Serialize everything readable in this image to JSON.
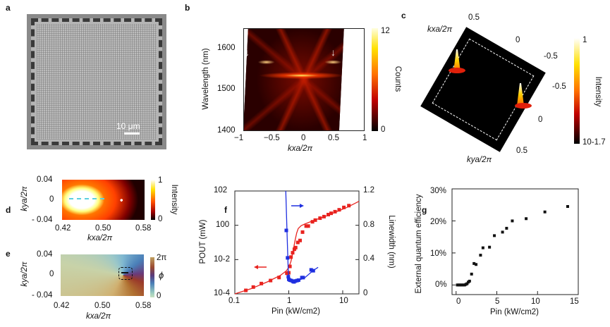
{
  "panels": {
    "a": {
      "label": "a",
      "scale_bar": "10 μm"
    },
    "b": {
      "label": "b",
      "ylabel": "Wavelength (nm)",
      "xlabel": "kxa/2π",
      "yticks": [
        "1600",
        "1500",
        "1400"
      ],
      "xticks": [
        "−1",
        "−0.5",
        "0",
        "0.5",
        "1"
      ],
      "colorbar_label": "Counts",
      "colorbar_ticks": [
        "12",
        "0"
      ]
    },
    "c": {
      "label": "c",
      "kx_label": "kxa/2π",
      "ky_label": "kya/2π",
      "kx_ticks": [
        "0.5",
        "0",
        "-0.5"
      ],
      "ky_ticks": [
        "-0.5",
        "0",
        "0.5"
      ],
      "colorbar_label": "Intensity",
      "colorbar_ticks": [
        "1",
        "10-1.7"
      ]
    },
    "d": {
      "label": "d",
      "ylabel": "kya/2π",
      "xlabel": "kxa/2π",
      "yticks": [
        "0.04",
        "0",
        "- 0.04"
      ],
      "xticks": [
        "0.42",
        "0.50",
        "0.58"
      ],
      "colorbar_label": "Intensity",
      "colorbar_ticks": [
        "1",
        "0"
      ]
    },
    "e": {
      "label": "e",
      "ylabel": "kya/2π",
      "xlabel": "kxa/2π",
      "yticks": [
        "0.04",
        "0",
        "- 0.04"
      ],
      "xticks": [
        "0.42",
        "0.50",
        "0.58"
      ],
      "colorbar_label": "ϕ",
      "colorbar_ticks": [
        "2π",
        "0"
      ]
    },
    "f": {
      "label": "f"
    },
    "g": {
      "label": "g"
    }
  },
  "chart_data": [
    {
      "panel": "f",
      "type": "scatter",
      "xlabel": "Pin (kW/cm2)",
      "ylabel": "POUT (mW)",
      "y2label": "Linewidth (nm)",
      "xscale": "log",
      "xlim": [
        0.1,
        20
      ],
      "yscale": "log",
      "ylim": [
        0.0001,
        100
      ],
      "y2lim": [
        0,
        1.2
      ],
      "xticks": [
        "0.1",
        "1",
        "10"
      ],
      "yticks": [
        "10-4",
        "10-2",
        "100",
        "102"
      ],
      "y2ticks": [
        "0",
        "0.4",
        "0.8",
        "1.2"
      ],
      "colors": {
        "output": "#e8231f",
        "linewidth": "#1f2fe0"
      },
      "series": [
        {
          "axis": "left",
          "marker": "square",
          "color": "#e8231f",
          "x": [
            0.16,
            0.22,
            0.31,
            0.46,
            0.66,
            0.92,
            1.0,
            1.05,
            1.1,
            1.18,
            1.27,
            1.34,
            1.47,
            1.62,
            1.8,
            2.1,
            2.3,
            2.75,
            3.1,
            3.8,
            4.5,
            5.4,
            6.1,
            7.2,
            8.6,
            10.5,
            13
          ],
          "y": [
            0.00016,
            0.00025,
            0.0004,
            0.0006,
            0.0009,
            0.0016,
            0.0017,
            0.004,
            0.014,
            0.025,
            0.04,
            0.05,
            0.1,
            0.13,
            0.4,
            0.9,
            0.9,
            1.6,
            2.0,
            2.6,
            3.2,
            4.2,
            5.0,
            6.2,
            8.0,
            11,
            14
          ]
        },
        {
          "axis": "left",
          "type": "line",
          "color": "#e8231f",
          "x": [
            0.1,
            0.2,
            0.4,
            0.7,
            0.9,
            1.0,
            1.1,
            1.2,
            1.3,
            1.4,
            1.5,
            1.7,
            2.0,
            3,
            5,
            8,
            12,
            20
          ],
          "y": [
            0.0001,
            0.0002,
            0.0005,
            0.0012,
            0.0022,
            0.0035,
            0.008,
            0.03,
            0.12,
            0.35,
            0.65,
            0.95,
            1.2,
            2.0,
            3.5,
            6.5,
            11,
            25
          ]
        },
        {
          "axis": "right",
          "marker": "square",
          "color": "#1f2fe0",
          "x": [
            0.9,
            0.95,
            0.98,
            1.0,
            1.05,
            1.12,
            1.2,
            1.25,
            1.32,
            1.42,
            1.52,
            1.75,
            1.85,
            2.6,
            2.85
          ],
          "y": [
            0.74,
            0.42,
            0.2,
            0.17,
            0.16,
            0.155,
            0.145,
            0.14,
            0.15,
            0.155,
            0.16,
            0.19,
            0.19,
            0.28,
            0.27
          ]
        },
        {
          "axis": "right",
          "type": "line",
          "color": "#1f2fe0",
          "x": [
            0.88,
            0.93,
            0.98,
            1.05,
            1.2,
            1.5,
            2.0,
            2.8,
            3.5
          ],
          "y": [
            1.2,
            0.7,
            0.25,
            0.16,
            0.14,
            0.155,
            0.19,
            0.27,
            0.31
          ]
        }
      ],
      "annotations": [
        {
          "type": "arrow",
          "direction": "left",
          "axis": "left"
        },
        {
          "type": "arrow",
          "direction": "right",
          "axis": "right"
        }
      ]
    },
    {
      "panel": "g",
      "type": "scatter",
      "xlabel": "Pin (kW/cm2)",
      "ylabel": "External quantum efficiency",
      "xlim": [
        -0.5,
        15
      ],
      "ylim": [
        -3,
        30
      ],
      "xticks": [
        "0",
        "5",
        "10",
        "15"
      ],
      "yticks": [
        "0%",
        "10%",
        "20%",
        "30%"
      ],
      "series": [
        {
          "marker": "square",
          "color": "#111111",
          "x": [
            0.15,
            0.3,
            0.45,
            0.6,
            0.75,
            0.9,
            1.05,
            1.2,
            1.35,
            1.5,
            1.65,
            1.9,
            2.2,
            2.45,
            3.0,
            3.3,
            4.1,
            4.7,
            5.7,
            6.2,
            6.9,
            8.6,
            10.9,
            13.7
          ],
          "y": [
            0,
            0,
            0,
            0,
            0,
            0,
            0,
            0.2,
            0.4,
            0.9,
            1.2,
            3.4,
            6.7,
            6.4,
            9.3,
            11.6,
            11.8,
            15.4,
            16.5,
            17.7,
            20.0,
            20.7,
            22.8,
            24.5
          ]
        }
      ]
    }
  ]
}
